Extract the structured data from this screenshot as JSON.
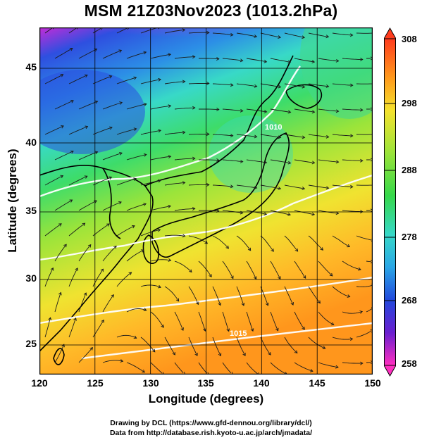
{
  "title": "MSM 21Z03Nov2023 (1013.2hPa)",
  "map": {
    "xlabel": "Longitude (degrees)",
    "ylabel": "Latitude  (degrees)",
    "x_range": [
      120,
      150
    ],
    "y_range": [
      22.4,
      47.6
    ],
    "x_ticks": [
      "120",
      "125",
      "130",
      "135",
      "140",
      "145",
      "150"
    ],
    "y_ticks": [
      "45",
      "40",
      "35",
      "30",
      "25"
    ],
    "isotherm_labels": [
      "1010",
      "1015"
    ],
    "colors": {
      "cold": "#1a4cd6",
      "cool": "#33ccdd",
      "mid": "#33dd66",
      "warm": "#f0e030",
      "hot": "#ff9a1f",
      "very_cold": "#ff33cc",
      "contour": "#ffffff",
      "coast": "#000000"
    }
  },
  "colorbar": {
    "max_label": "308",
    "min_label": "258",
    "tick_labels": [
      "298",
      "288",
      "278",
      "268"
    ],
    "range": [
      258,
      308
    ]
  },
  "credits": {
    "line1": "Drawing by DCL (https://www.gfd-dennou.org/library/dcl/)",
    "line2": "Data from http://database.rish.kyoto-u.ac.jp/arch/jmadata/"
  }
}
